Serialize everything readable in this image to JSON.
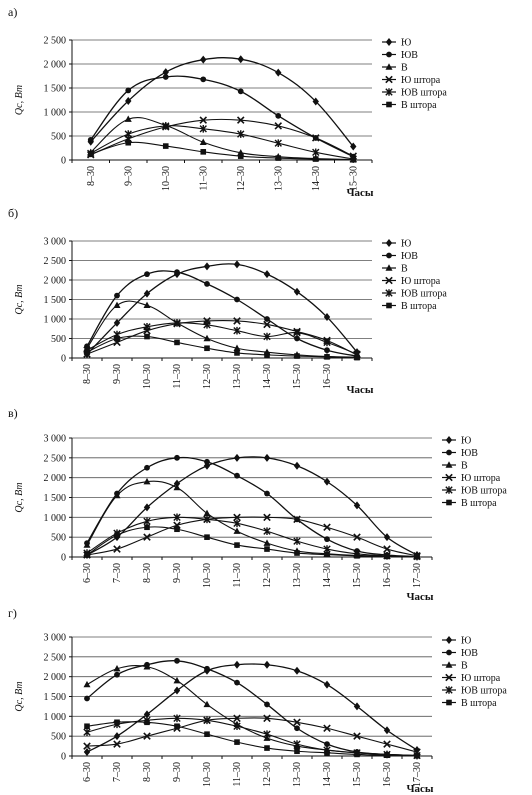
{
  "chart_data": [
    {
      "type": "line",
      "panel_label": "а)",
      "ylabel": "Qc, Вт",
      "xlabel": "Часы",
      "ylim": [
        0,
        2500
      ],
      "yticks": [
        "2 500",
        "2 000",
        "1 500",
        "1 000",
        "500",
        "0"
      ],
      "ytick_values": [
        2500,
        2000,
        1500,
        1000,
        500,
        0
      ],
      "categories": [
        "8–30",
        "9–30",
        "10–30",
        "11–30",
        "12–30",
        "13–30",
        "14–30",
        "15–30"
      ],
      "grid": true,
      "legend_placement": "right",
      "series": [
        {
          "name": "Ю",
          "marker": "diamond",
          "values": [
            380,
            1230,
            1830,
            2090,
            2100,
            1820,
            1220,
            280
          ]
        },
        {
          "name": "ЮВ",
          "marker": "circle",
          "values": [
            420,
            1450,
            1730,
            1680,
            1430,
            920,
            460,
            70
          ]
        },
        {
          "name": "В",
          "marker": "triangle",
          "values": [
            160,
            850,
            720,
            370,
            150,
            70,
            30,
            10
          ]
        },
        {
          "name": "Ю штора",
          "marker": "x",
          "values": [
            110,
            440,
            690,
            830,
            830,
            710,
            460,
            80
          ]
        },
        {
          "name": "ЮВ штора",
          "marker": "star",
          "values": [
            140,
            540,
            710,
            650,
            540,
            350,
            160,
            20
          ]
        },
        {
          "name": "В штора",
          "marker": "square",
          "values": [
            120,
            360,
            290,
            170,
            80,
            40,
            20,
            5
          ]
        }
      ]
    },
    {
      "type": "line",
      "panel_label": "б)",
      "ylabel": "Qc, Вт",
      "xlabel": "Часы",
      "ylim": [
        0,
        3000
      ],
      "yticks": [
        "3 000",
        "2 500",
        "2 000",
        "1 500",
        "1 000",
        "500",
        "0"
      ],
      "ytick_values": [
        3000,
        2500,
        2000,
        1500,
        1000,
        500,
        0
      ],
      "categories": [
        "8–30",
        "9–30",
        "10–30",
        "11–30",
        "12–30",
        "13–30",
        "14–30",
        "15–30",
        "16–30",
        ""
      ],
      "grid": true,
      "legend_placement": "right",
      "series": [
        {
          "name": "Ю",
          "marker": "diamond",
          "values": [
            100,
            900,
            1650,
            2150,
            2350,
            2400,
            2150,
            1700,
            1050,
            150
          ]
        },
        {
          "name": "ЮВ",
          "marker": "circle",
          "values": [
            300,
            1600,
            2150,
            2200,
            1900,
            1500,
            1000,
            500,
            200,
            50
          ]
        },
        {
          "name": "В",
          "marker": "triangle",
          "values": [
            250,
            1350,
            1350,
            900,
            500,
            250,
            150,
            80,
            40,
            20
          ]
        },
        {
          "name": "Ю штора",
          "marker": "x",
          "values": [
            100,
            400,
            700,
            880,
            950,
            950,
            860,
            680,
            450,
            80
          ]
        },
        {
          "name": "ЮВ штора",
          "marker": "star",
          "values": [
            200,
            600,
            800,
            900,
            850,
            700,
            550,
            650,
            400,
            100
          ]
        },
        {
          "name": "В штора",
          "marker": "square",
          "values": [
            150,
            500,
            550,
            400,
            250,
            130,
            80,
            50,
            30,
            10
          ]
        }
      ]
    },
    {
      "type": "line",
      "panel_label": "в)",
      "ylabel": "Qc, Вт",
      "xlabel": "Часы",
      "ylim": [
        0,
        3000
      ],
      "yticks": [
        "3 000",
        "2 500",
        "2 000",
        "1 500",
        "1 000",
        "500",
        "0"
      ],
      "ytick_values": [
        3000,
        2500,
        2000,
        1500,
        1000,
        500,
        0
      ],
      "categories": [
        "6–30",
        "7–30",
        "8–30",
        "9–30",
        "10–30",
        "11–30",
        "12–30",
        "13–30",
        "14–30",
        "15–30",
        "16–30",
        "17–30"
      ],
      "grid": true,
      "legend_placement": "right",
      "series": [
        {
          "name": "Ю",
          "marker": "diamond",
          "values": [
            50,
            500,
            1250,
            1850,
            2300,
            2500,
            2500,
            2300,
            1900,
            1300,
            500,
            50
          ]
        },
        {
          "name": "ЮВ",
          "marker": "circle",
          "values": [
            350,
            1600,
            2250,
            2500,
            2400,
            2050,
            1600,
            950,
            450,
            150,
            50,
            10
          ]
        },
        {
          "name": "В",
          "marker": "triangle",
          "values": [
            300,
            1550,
            1900,
            1750,
            1100,
            650,
            350,
            150,
            80,
            40,
            20,
            10
          ]
        },
        {
          "name": "Ю штора",
          "marker": "x",
          "values": [
            50,
            200,
            500,
            800,
            950,
            1000,
            1000,
            950,
            750,
            500,
            200,
            30
          ]
        },
        {
          "name": "ЮВ штора",
          "marker": "star",
          "values": [
            100,
            600,
            900,
            1000,
            950,
            850,
            650,
            400,
            200,
            80,
            30,
            10
          ]
        },
        {
          "name": "В штора",
          "marker": "square",
          "values": [
            50,
            550,
            750,
            700,
            500,
            300,
            200,
            100,
            60,
            30,
            15,
            5
          ]
        }
      ]
    },
    {
      "type": "line",
      "panel_label": "г)",
      "ylabel": "Qc, Вт",
      "xlabel": "Часы",
      "ylim": [
        0,
        3000
      ],
      "yticks": [
        "3 000",
        "2 500",
        "2 000",
        "1 500",
        "1 000",
        "500",
        "0"
      ],
      "ytick_values": [
        3000,
        2500,
        2000,
        1500,
        1000,
        500,
        0
      ],
      "categories": [
        "6–30",
        "7–30",
        "8–30",
        "9–30",
        "10–30",
        "11–30",
        "12–30",
        "13–30",
        "14–30",
        "15–30",
        "16–30",
        "17–30"
      ],
      "grid": true,
      "legend_placement": "right",
      "series": [
        {
          "name": "Ю",
          "marker": "diamond",
          "values": [
            100,
            500,
            1050,
            1650,
            2150,
            2300,
            2300,
            2150,
            1800,
            1250,
            650,
            150
          ]
        },
        {
          "name": "ЮВ",
          "marker": "circle",
          "values": [
            1450,
            2050,
            2300,
            2400,
            2200,
            1850,
            1300,
            700,
            300,
            100,
            40,
            10
          ]
        },
        {
          "name": "В",
          "marker": "triangle",
          "values": [
            1800,
            2200,
            2250,
            1900,
            1300,
            800,
            450,
            250,
            150,
            80,
            40,
            10
          ]
        },
        {
          "name": "Ю штора",
          "marker": "x",
          "values": [
            250,
            300,
            500,
            700,
            900,
            950,
            950,
            850,
            700,
            500,
            300,
            100
          ]
        },
        {
          "name": "ЮВ штора",
          "marker": "star",
          "values": [
            600,
            800,
            900,
            950,
            900,
            750,
            550,
            300,
            150,
            80,
            40,
            10
          ]
        },
        {
          "name": "В штора",
          "marker": "square",
          "values": [
            750,
            850,
            850,
            750,
            550,
            350,
            200,
            120,
            80,
            40,
            20,
            5
          ]
        }
      ]
    }
  ]
}
